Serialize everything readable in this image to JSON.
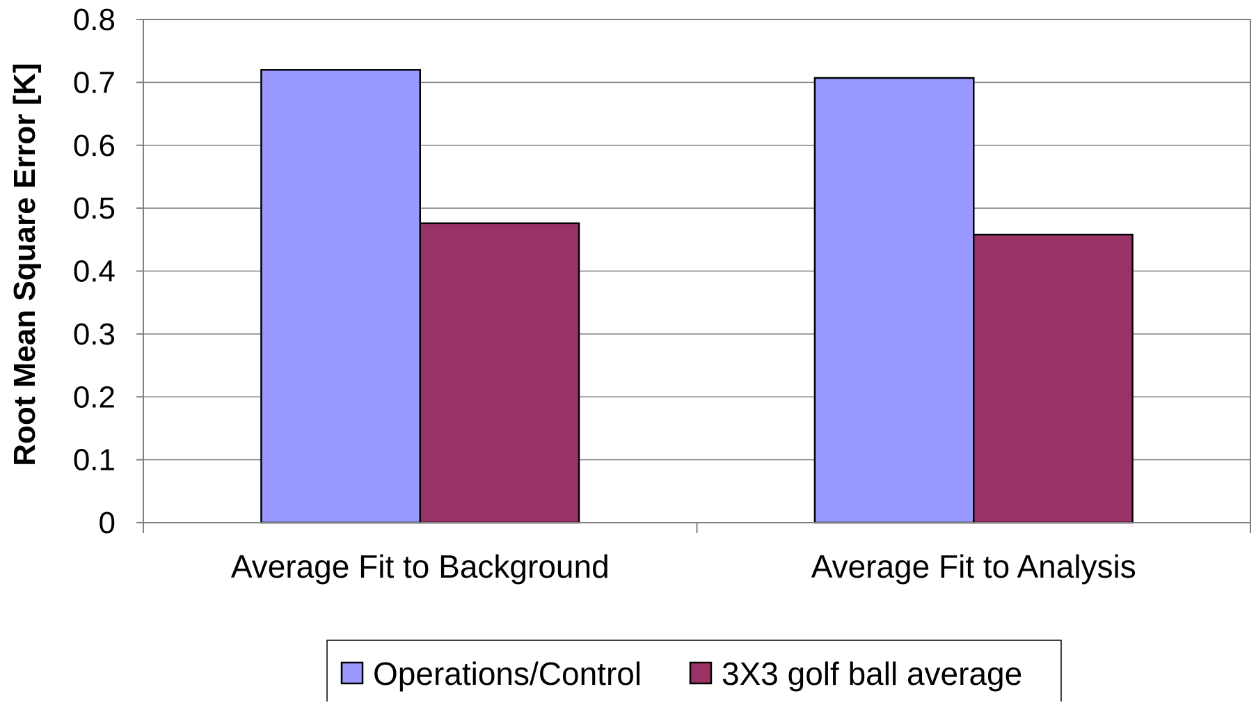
{
  "chart_data": {
    "type": "bar",
    "title": "",
    "xlabel": "",
    "ylabel": "Root Mean Square Error [K]",
    "ylim": [
      0,
      0.8
    ],
    "yticks": [
      "0",
      "0.1",
      "0.2",
      "0.3",
      "0.4",
      "0.5",
      "0.6",
      "0.7",
      "0.8"
    ],
    "categories": [
      "Average Fit to Background",
      "Average Fit to Analysis"
    ],
    "series": [
      {
        "name": "Operations/Control",
        "color": "#9999ff",
        "values": [
          0.72,
          0.707
        ]
      },
      {
        "name": "3X3 golf ball average",
        "color": "#993366",
        "values": [
          0.476,
          0.458
        ]
      }
    ],
    "grid": true,
    "legend": "bottom-center",
    "plot_background": "#ffffff",
    "gridline_color": "#808080",
    "axis_color": "#808080"
  }
}
